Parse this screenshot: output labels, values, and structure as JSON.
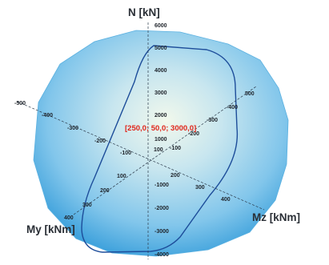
{
  "chart_data": {
    "type": "3d-interaction-diagram",
    "axes": {
      "N": {
        "title": "N [kN]",
        "ticks": [
          "6000",
          "5000",
          "4000",
          "3000",
          "2000",
          "1000",
          "-1000",
          "-2000",
          "-3000",
          "-4000"
        ]
      },
      "My": {
        "title": "My [kNm]",
        "ticks": [
          "-500",
          "-400",
          "-300",
          "-200",
          "-100",
          "100",
          "200",
          "300",
          "400"
        ]
      },
      "Mz": {
        "title": "Mz [kNm]",
        "ticks": [
          "-400",
          "-300",
          "-200",
          "-100",
          "100",
          "200",
          "300",
          "400",
          "500"
        ]
      }
    },
    "point": {
      "label": "[250,0; 50,0; 3000,0]",
      "values": {
        "My": 250.0,
        "Mz": 50.0,
        "N": 3000.0
      }
    },
    "colors": {
      "surface_center": "#e9f4e8",
      "surface_edge": "#4aa7dd",
      "curve": "#1d4d9a",
      "point_label": "#e0261b"
    }
  }
}
